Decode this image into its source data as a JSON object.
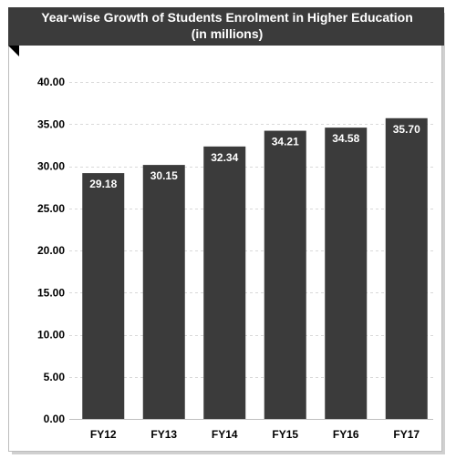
{
  "chart_data": {
    "type": "bar",
    "title": "Year-wise Growth of Students Enrolment in Higher Education",
    "subtitle": "(in millions)",
    "xlabel": "",
    "ylabel": "",
    "categories": [
      "FY12",
      "FY13",
      "FY14",
      "FY15",
      "FY16",
      "FY17"
    ],
    "values": [
      29.18,
      30.15,
      32.34,
      34.21,
      34.58,
      35.7
    ],
    "value_labels": [
      "29.18",
      "30.15",
      "32.34",
      "34.21",
      "34.58",
      "35.70"
    ],
    "ylim": [
      0,
      40
    ],
    "y_ticks": [
      "0.00",
      "5.00",
      "10.00",
      "15.00",
      "20.00",
      "25.00",
      "30.00",
      "35.00",
      "40.00"
    ],
    "y_tick_values": [
      0,
      5,
      10,
      15,
      20,
      25,
      30,
      35,
      40
    ],
    "grid": true,
    "legend": "none",
    "colors": {
      "bar": "#3b3b3b",
      "title_bg": "#3b3b3b",
      "title_text": "#ffffff",
      "grid": "#d9d9d9",
      "frame": "#bdbdbd",
      "value_text": "#ffffff"
    }
  }
}
